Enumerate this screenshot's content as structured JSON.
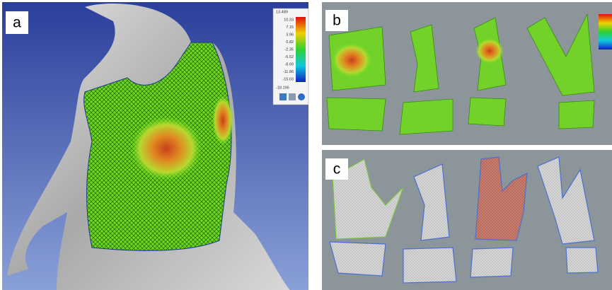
{
  "panels": [
    {
      "label": "a"
    },
    {
      "label": "b"
    },
    {
      "label": "c"
    }
  ],
  "legend": {
    "title": "13.489",
    "labels": [
      "10.33",
      "7.15",
      "3.96",
      "0.82",
      "-2.35",
      "-5.52",
      "-8.69",
      "-11.86",
      "-15.03"
    ],
    "bottom": "-18.196"
  }
}
